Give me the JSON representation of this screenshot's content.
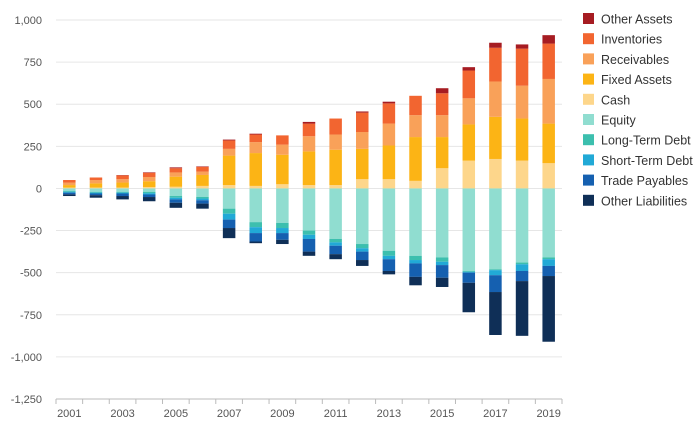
{
  "chart_data": {
    "type": "bar",
    "stacked": true,
    "title": "",
    "xlabel": "",
    "ylabel": "",
    "ylim": [
      -1250,
      1000
    ],
    "yticks": [
      1000,
      750,
      500,
      250,
      0,
      -250,
      -500,
      -750,
      -1000,
      -1250
    ],
    "ytick_labels": [
      "1,000",
      "750",
      "500",
      "250",
      "0",
      "-250",
      "-500",
      "-750",
      "-1,000",
      "-1,250"
    ],
    "xtick_labels": [
      "2001",
      "2003",
      "2005",
      "2007",
      "2009",
      "2011",
      "2013",
      "2015",
      "2017",
      "2019"
    ],
    "categories": [
      "2001",
      "2002",
      "2003",
      "2004",
      "2005",
      "2006",
      "2007",
      "2008",
      "2009",
      "2010",
      "2011",
      "2012",
      "2013",
      "2014",
      "2015",
      "2016",
      "2017",
      "2018",
      "2019"
    ],
    "legend_position": "right",
    "grid": true,
    "series": [
      {
        "name": "Other Assets",
        "color": "#a61c22",
        "side": "positive",
        "values": [
          0,
          0,
          2,
          3,
          5,
          3,
          5,
          5,
          0,
          10,
          0,
          7,
          10,
          0,
          30,
          20,
          30,
          25,
          50
        ]
      },
      {
        "name": "Inventories",
        "color": "#f26530",
        "side": "positive",
        "values": [
          15,
          15,
          22,
          25,
          25,
          28,
          50,
          45,
          55,
          75,
          95,
          115,
          120,
          115,
          130,
          165,
          200,
          220,
          210
        ]
      },
      {
        "name": "Receivables",
        "color": "#f9a159",
        "side": "positive",
        "values": [
          15,
          20,
          20,
          25,
          25,
          20,
          40,
          65,
          60,
          90,
          90,
          100,
          130,
          130,
          130,
          155,
          210,
          195,
          265
        ]
      },
      {
        "name": "Fixed Assets",
        "color": "#fcb415",
        "side": "positive",
        "values": [
          15,
          25,
          30,
          35,
          60,
          65,
          175,
          195,
          175,
          200,
          210,
          180,
          200,
          260,
          185,
          215,
          250,
          250,
          235
        ]
      },
      {
        "name": "Cash",
        "color": "#fdd68b",
        "side": "positive",
        "values": [
          5,
          5,
          5,
          8,
          10,
          15,
          20,
          15,
          25,
          20,
          20,
          55,
          55,
          45,
          120,
          165,
          175,
          165,
          150
        ]
      },
      {
        "name": "Equity",
        "color": "#90ddd0",
        "side": "negative",
        "values": [
          -15,
          -20,
          -20,
          -20,
          -45,
          -50,
          -120,
          -200,
          -205,
          -250,
          -300,
          -330,
          -370,
          -400,
          -410,
          -490,
          -480,
          -440,
          -410
        ]
      },
      {
        "name": "Long-Term Debt",
        "color": "#3cbfae",
        "side": "negative",
        "values": [
          -5,
          -5,
          -5,
          -8,
          -10,
          -10,
          -30,
          -30,
          -30,
          -25,
          -20,
          -25,
          -30,
          -25,
          -25,
          -5,
          -5,
          -10,
          -10
        ]
      },
      {
        "name": "Short-Term Debt",
        "color": "#21a9d6",
        "side": "negative",
        "values": [
          -5,
          -5,
          -5,
          -8,
          -10,
          -10,
          -35,
          -35,
          -30,
          -25,
          -20,
          -20,
          -20,
          -20,
          -20,
          -5,
          -30,
          -40,
          -40
        ]
      },
      {
        "name": "Trade Payables",
        "color": "#1560b0",
        "side": "negative",
        "values": [
          -10,
          -10,
          -15,
          -15,
          -20,
          -20,
          -50,
          -50,
          -40,
          -75,
          -50,
          -50,
          -70,
          -80,
          -75,
          -60,
          -100,
          -60,
          -60
        ]
      },
      {
        "name": "Other Liabilities",
        "color": "#0f2f57",
        "side": "negative",
        "values": [
          -10,
          -15,
          -20,
          -25,
          -30,
          -30,
          -60,
          -10,
          -25,
          -25,
          -30,
          -35,
          -20,
          -50,
          -55,
          -175,
          -255,
          -325,
          -390
        ]
      }
    ]
  }
}
